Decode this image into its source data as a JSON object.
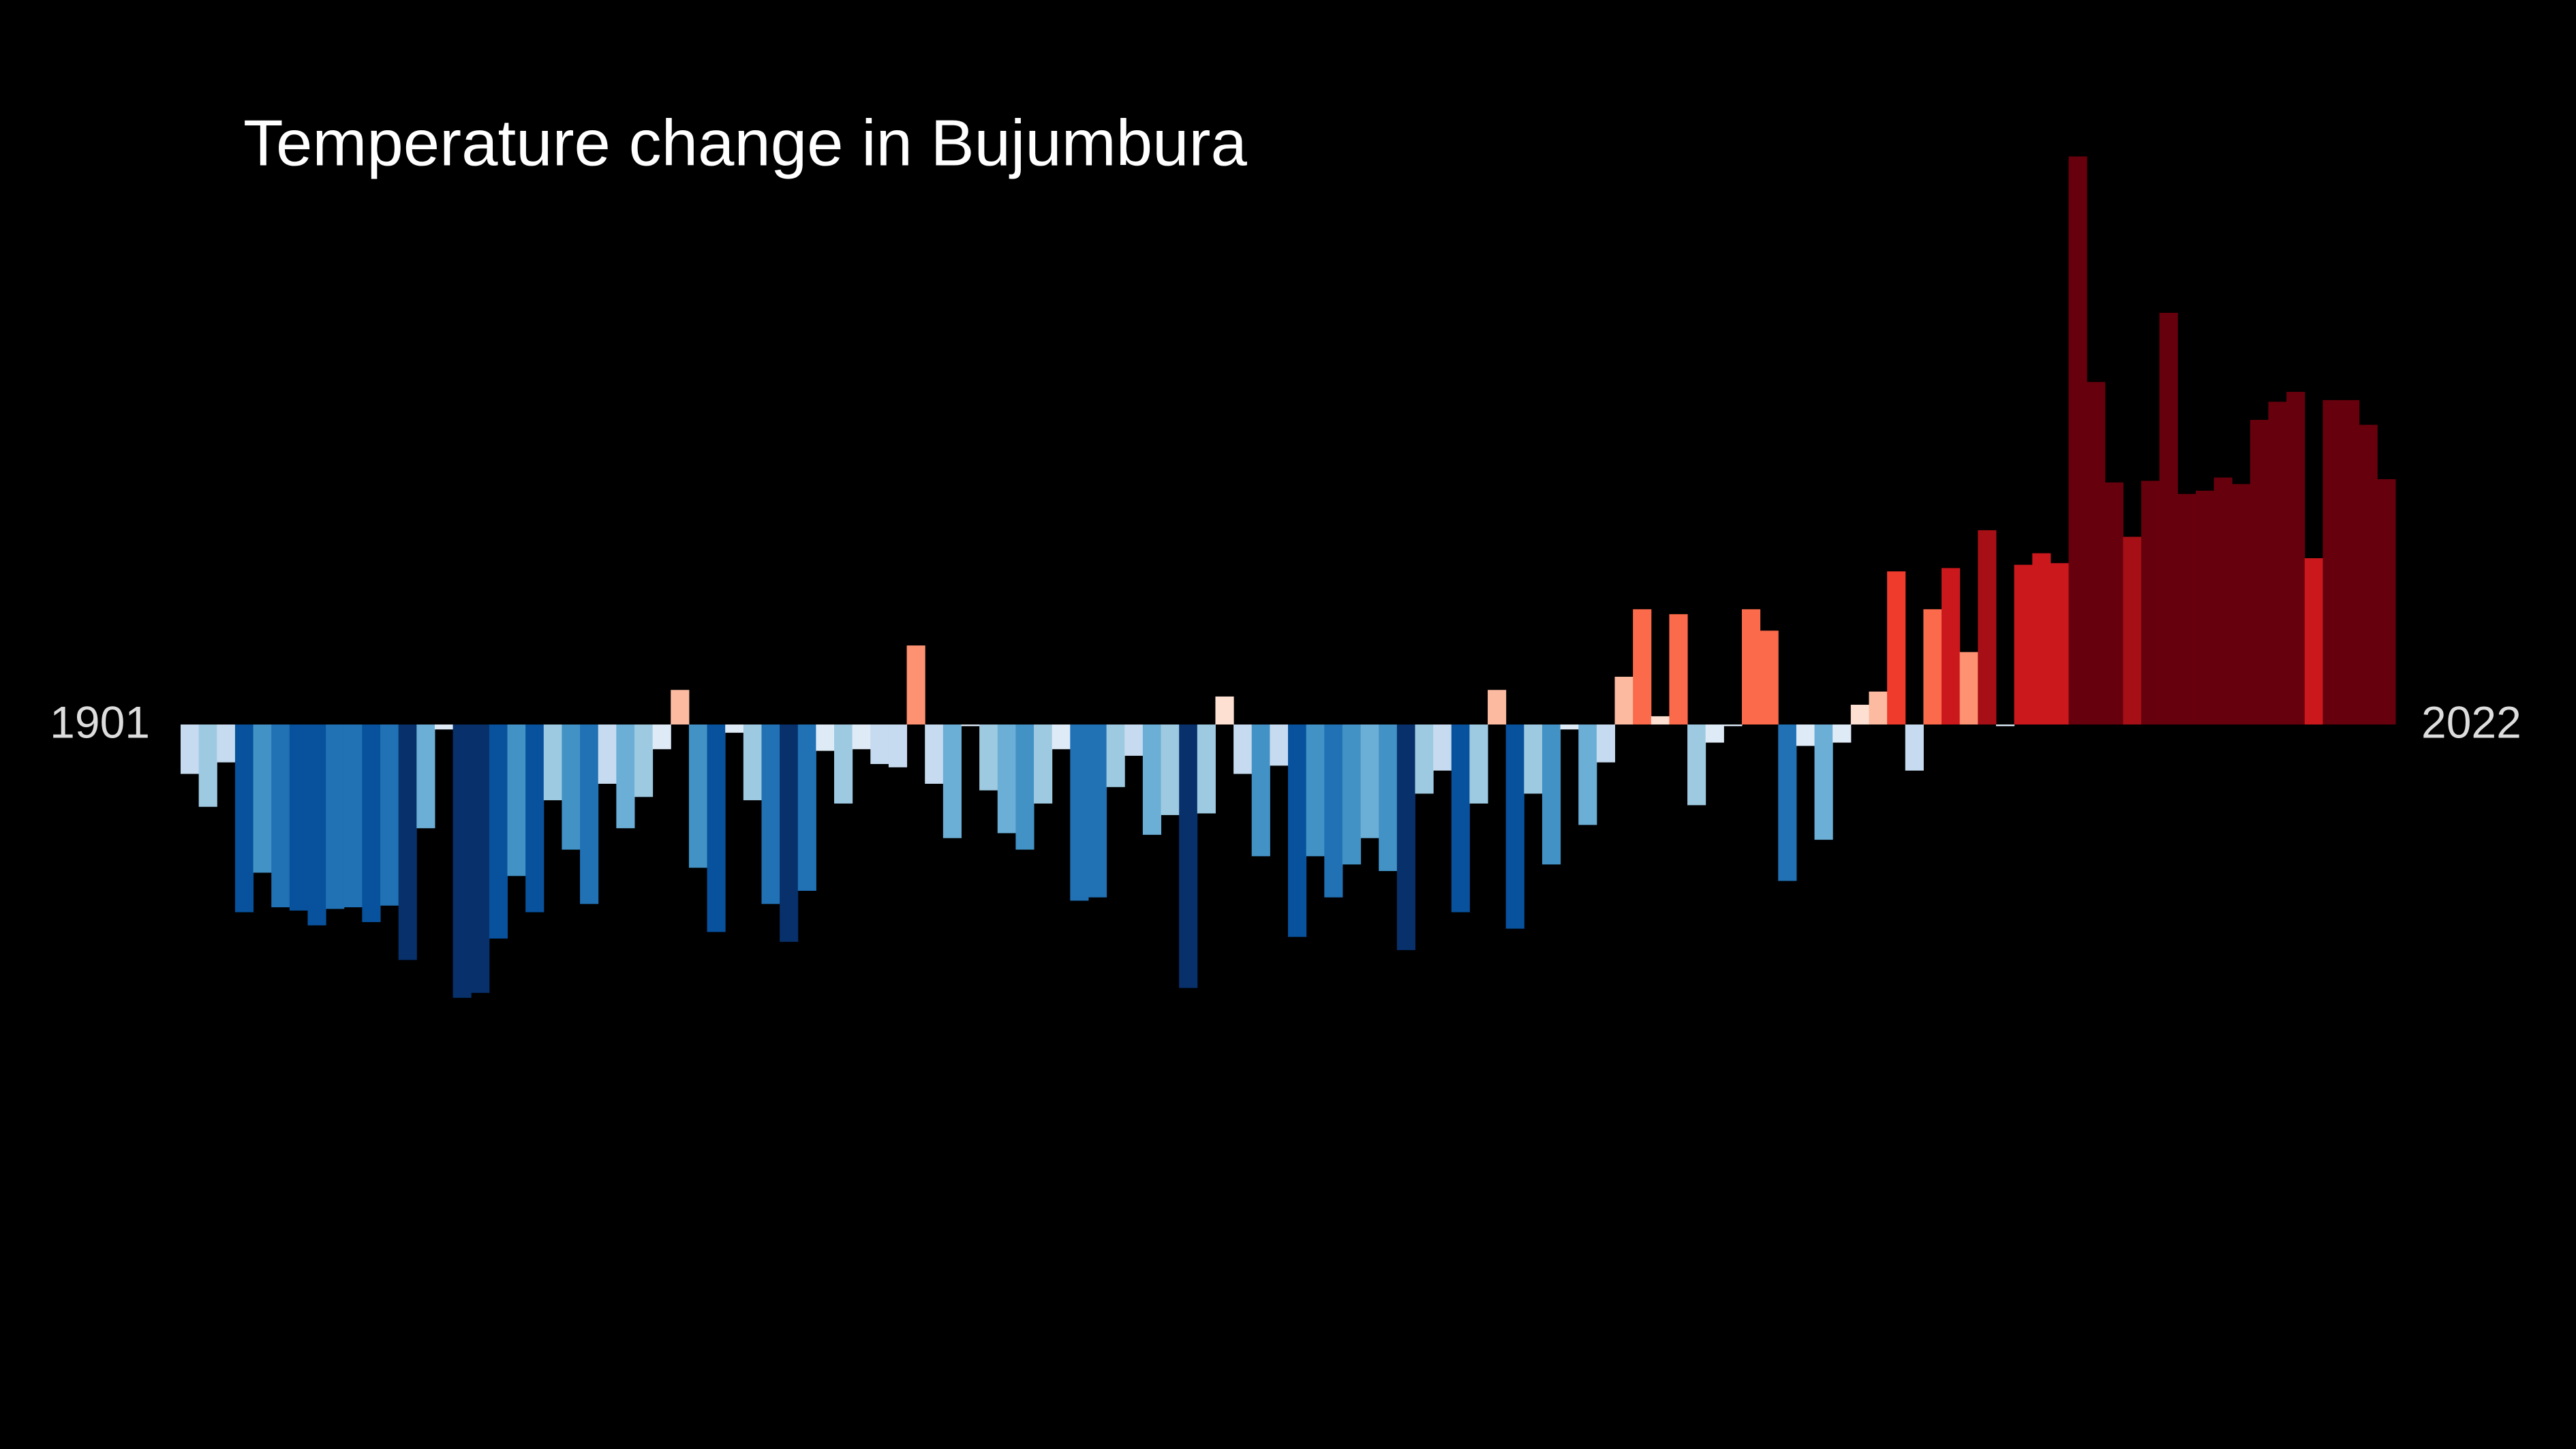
{
  "chart_data": {
    "type": "bar",
    "title": "Temperature change in Bujumbura",
    "categories": [
      1901,
      null,
      null,
      null,
      null,
      null,
      null,
      null,
      null,
      null,
      null,
      null,
      null,
      null,
      null,
      null,
      null,
      null,
      null,
      null,
      null,
      null,
      null,
      null,
      null,
      null,
      null,
      null,
      null,
      null,
      null,
      null,
      null,
      null,
      null,
      null,
      null,
      null,
      null,
      null,
      null,
      null,
      null,
      null,
      null,
      null,
      null,
      null,
      null,
      null,
      null,
      null,
      null,
      null,
      null,
      null,
      null,
      null,
      null,
      null,
      null,
      null,
      null,
      null,
      null,
      null,
      null,
      null,
      null,
      null,
      null,
      null,
      null,
      null,
      null,
      null,
      null,
      null,
      null,
      null,
      null,
      null,
      null,
      null,
      null,
      null,
      null,
      null,
      null,
      null,
      null,
      null,
      null,
      null,
      null,
      null,
      null,
      null,
      null,
      null,
      null,
      null,
      null,
      null,
      null,
      null,
      null,
      null,
      null,
      null,
      null,
      null,
      null,
      null,
      null,
      null,
      null,
      null,
      null,
      null,
      null,
      2022
    ],
    "values": [
      -0.15,
      -0.25,
      -0.115,
      -0.57,
      -0.45,
      -0.555,
      -0.565,
      -0.61,
      -0.56,
      -0.555,
      -0.6,
      -0.55,
      -0.715,
      -0.315,
      -0.015,
      -0.83,
      -0.815,
      -0.65,
      -0.46,
      -0.57,
      -0.23,
      -0.38,
      -0.545,
      -0.18,
      -0.315,
      -0.22,
      -0.075,
      0.105,
      -0.435,
      -0.63,
      -0.025,
      -0.23,
      -0.545,
      -0.66,
      -0.505,
      -0.08,
      -0.24,
      -0.075,
      -0.12,
      -0.13,
      0.24,
      -0.18,
      -0.345,
      -0.005,
      -0.2,
      -0.33,
      -0.38,
      -0.24,
      -0.075,
      -0.535,
      -0.525,
      -0.19,
      -0.095,
      -0.335,
      -0.275,
      -0.8,
      -0.27,
      0.085,
      -0.15,
      -0.4,
      -0.125,
      -0.645,
      -0.4,
      -0.525,
      -0.425,
      -0.345,
      -0.445,
      -0.685,
      -0.21,
      -0.14,
      -0.57,
      -0.24,
      0.105,
      -0.62,
      -0.21,
      -0.425,
      -0.015,
      -0.305,
      -0.115,
      0.145,
      0.35,
      0.025,
      0.335,
      -0.245,
      -0.055,
      -0.005,
      0.35,
      0.285,
      -0.475,
      -0.065,
      -0.35,
      -0.055,
      0.06,
      0.1,
      0.465,
      -0.14,
      0.35,
      0.475,
      0.22,
      0.59,
      -0.005,
      0.485,
      0.52,
      0.49,
      1.725,
      1.04,
      0.735,
      0.57,
      0.74,
      1.25,
      0.7,
      0.71,
      0.75,
      0.73,
      0.925,
      0.98,
      1.01,
      0.505,
      0.985,
      0.985,
      0.91,
      0.745
    ],
    "ylim": [
      -2.2,
      2.2
    ],
    "palette": [
      "#08306b",
      "#08519c",
      "#2171b5",
      "#4292c6",
      "#6baed6",
      "#9ecae1",
      "#c6dbef",
      "#deebf7",
      "#fee0d2",
      "#fcbba1",
      "#fc9272",
      "#fb6a4a",
      "#ef3b2c",
      "#cb181d",
      "#a50f15",
      "#67000d"
    ],
    "clim": [
      -0.75,
      0.75
    ],
    "background": "#000000",
    "text_color": "#ffffff",
    "label_color": "#dddddd"
  }
}
